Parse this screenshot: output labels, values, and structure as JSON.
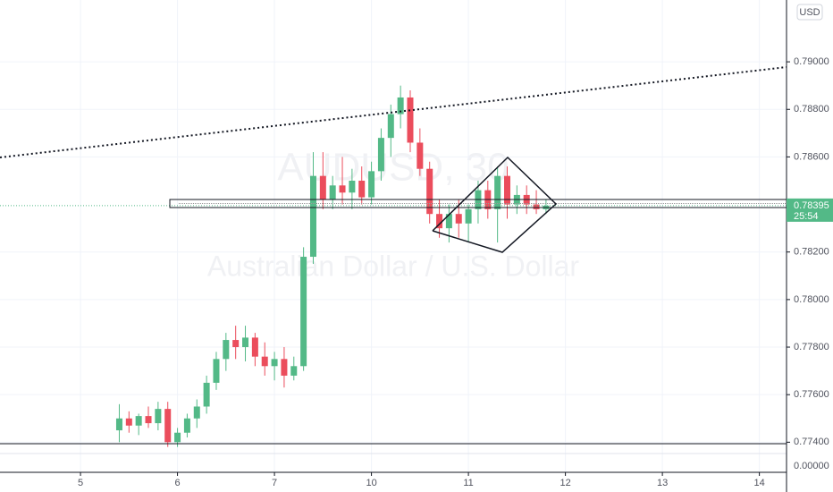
{
  "chart_data": {
    "type": "candlestick",
    "watermark": {
      "symbol": "AUDUSD, 30",
      "description": "Australian Dollar / U.S. Dollar"
    },
    "currency": "USD",
    "up_color": "#53b987",
    "down_color": "#eb4d5c",
    "grid": true,
    "x": [
      5.4,
      5.5,
      5.6,
      5.7,
      5.8,
      5.9,
      6.0,
      6.1,
      6.2,
      6.3,
      6.4,
      6.5,
      6.6,
      6.7,
      6.8,
      6.9,
      7.0,
      7.1,
      7.2,
      7.3,
      7.4,
      7.5,
      7.6,
      7.7,
      7.8,
      7.9,
      8.0,
      8.1,
      8.2,
      8.3,
      8.4,
      8.5,
      8.6,
      8.7,
      8.8,
      8.9,
      9.0,
      9.1,
      9.2,
      9.3,
      9.4,
      9.5,
      9.6,
      9.7,
      9.8
    ],
    "open": [
      0.7745,
      0.775,
      0.7747,
      0.7751,
      0.7748,
      0.7754,
      0.774,
      0.7744,
      0.775,
      0.7755,
      0.7765,
      0.7775,
      0.7783,
      0.778,
      0.7784,
      0.7776,
      0.7772,
      0.7775,
      0.7768,
      0.7772,
      0.7818,
      0.7852,
      0.7842,
      0.7848,
      0.7845,
      0.785,
      0.7843,
      0.7854,
      0.7868,
      0.7878,
      0.7885,
      0.7866,
      0.7855,
      0.7836,
      0.783,
      0.7836,
      0.7832,
      0.7838,
      0.7846,
      0.7838,
      0.7852,
      0.784,
      0.7844,
      0.784,
      0.7838
    ],
    "high": [
      0.7756,
      0.7753,
      0.7752,
      0.7755,
      0.7757,
      0.7757,
      0.7746,
      0.7752,
      0.7758,
      0.7768,
      0.7778,
      0.7786,
      0.7789,
      0.7789,
      0.7786,
      0.7782,
      0.7778,
      0.778,
      0.7776,
      0.7822,
      0.7862,
      0.7862,
      0.7852,
      0.786,
      0.7855,
      0.7856,
      0.7858,
      0.7872,
      0.7882,
      0.789,
      0.7888,
      0.7872,
      0.7858,
      0.7842,
      0.784,
      0.7842,
      0.784,
      0.785,
      0.785,
      0.7856,
      0.7856,
      0.7848,
      0.7848,
      0.7846,
      0.7842
    ],
    "low": [
      0.774,
      0.7744,
      0.7743,
      0.7746,
      0.7745,
      0.7738,
      0.7738,
      0.7742,
      0.7746,
      0.7752,
      0.7762,
      0.777,
      0.7775,
      0.7774,
      0.7772,
      0.7768,
      0.7766,
      0.7763,
      0.7766,
      0.777,
      0.7815,
      0.7838,
      0.7838,
      0.784,
      0.7838,
      0.784,
      0.784,
      0.785,
      0.786,
      0.7872,
      0.7862,
      0.7852,
      0.7832,
      0.7826,
      0.7824,
      0.7826,
      0.7824,
      0.7832,
      0.7834,
      0.7824,
      0.7834,
      0.7836,
      0.7836,
      0.7836,
      0.7836
    ],
    "close": [
      0.775,
      0.7747,
      0.7751,
      0.7748,
      0.7754,
      0.774,
      0.7744,
      0.775,
      0.7755,
      0.7765,
      0.7775,
      0.7783,
      0.778,
      0.7784,
      0.7776,
      0.7772,
      0.7775,
      0.7768,
      0.7772,
      0.7818,
      0.7852,
      0.7842,
      0.7848,
      0.7845,
      0.785,
      0.7843,
      0.7854,
      0.7868,
      0.7878,
      0.7885,
      0.7866,
      0.7855,
      0.7836,
      0.783,
      0.7836,
      0.7832,
      0.7838,
      0.7846,
      0.7838,
      0.7852,
      0.784,
      0.7844,
      0.784,
      0.7838,
      0.78395
    ],
    "xlim": [
      4.17,
      12.28
    ],
    "xticks": [
      5,
      6,
      7,
      {
        "value": 8,
        "label": "10"
      },
      {
        "value": 9,
        "label": "11"
      },
      {
        "value": 10,
        "label": "12"
      },
      {
        "value": 11,
        "label": "13"
      },
      {
        "value": 12,
        "label": "14"
      }
    ],
    "ylim": [
      0.7739,
      0.7926
    ],
    "yticks": [
      {
        "value": 0.774,
        "label": "0.77400"
      },
      {
        "value": 0.776,
        "label": "0.77600"
      },
      {
        "value": 0.778,
        "label": "0.77800"
      },
      {
        "value": 0.78,
        "label": "0.78000"
      },
      {
        "value": 0.782,
        "label": "0.78200"
      },
      {
        "value": 0.786,
        "label": "0.78600"
      },
      {
        "value": 0.788,
        "label": "0.78800"
      },
      {
        "value": 0.79,
        "label": "0.79000"
      }
    ],
    "last_price": 0.78395,
    "countdown": "25:54",
    "volume_pane": {
      "yticks": [
        {
          "value": 0,
          "label": "0.00000"
        }
      ]
    }
  }
}
